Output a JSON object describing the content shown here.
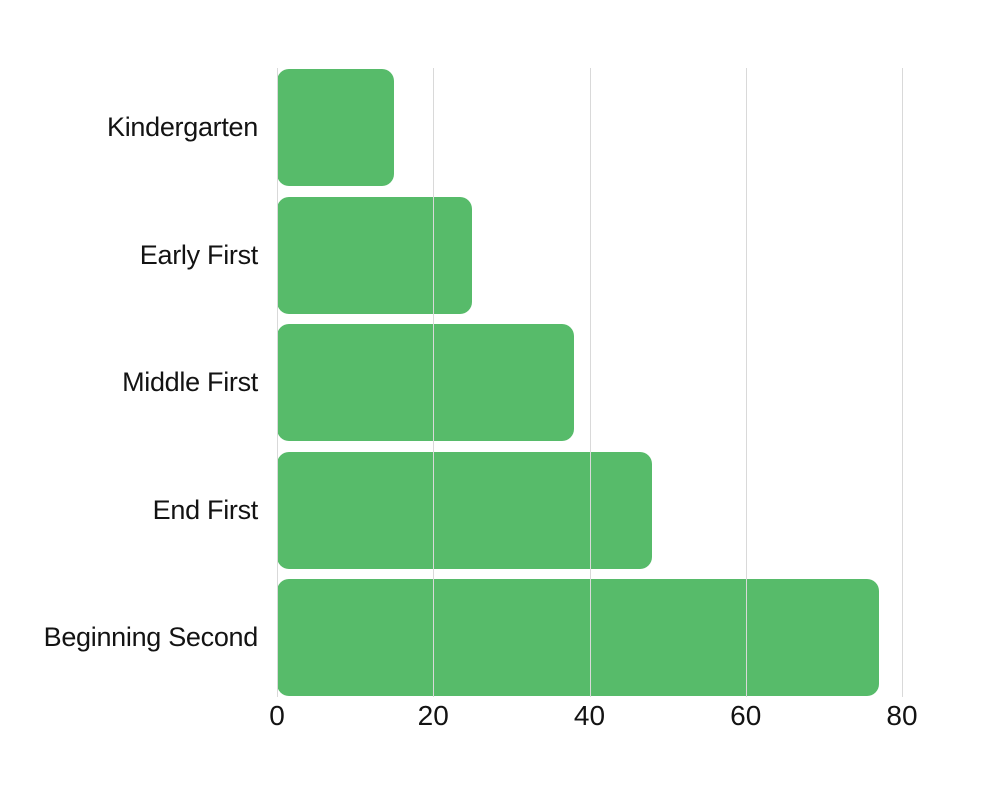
{
  "chart_data": {
    "type": "bar",
    "orientation": "horizontal",
    "title": "",
    "xlabel": "",
    "ylabel": "",
    "categories": [
      "Kindergarten",
      "Early First",
      "Middle First",
      "End First",
      "Beginning Second"
    ],
    "values": [
      15,
      25,
      38,
      48,
      77
    ],
    "xlim": [
      0,
      80
    ],
    "xticks": [
      0,
      20,
      40,
      60,
      80
    ],
    "grid": true,
    "legend": false,
    "colors": {
      "bar": "#57bb6a",
      "gridline": "#d9d9d9",
      "text": "#131313",
      "background": "#ffffff"
    }
  }
}
